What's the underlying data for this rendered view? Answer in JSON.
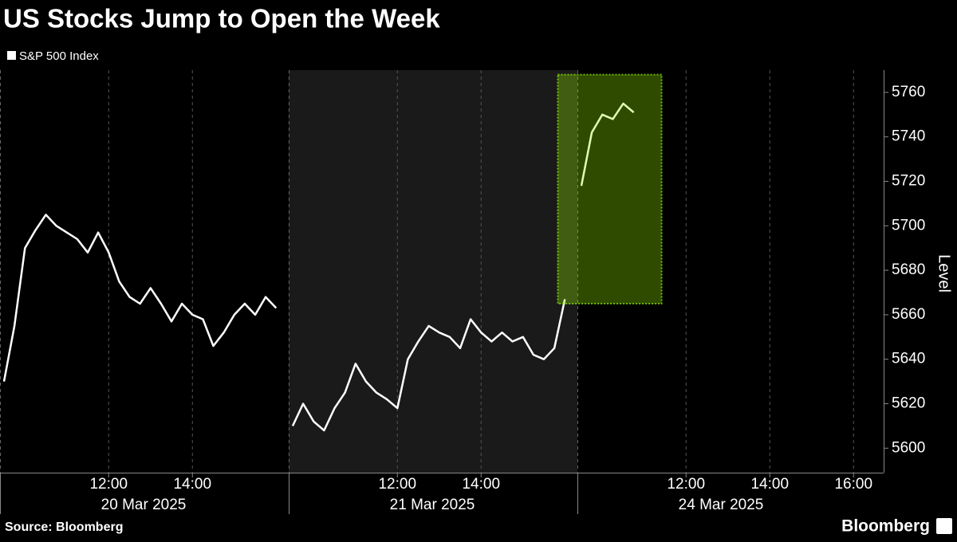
{
  "chart_data": {
    "type": "line",
    "title": "US Stocks Jump to Open the Week",
    "y_axis_label": "Level",
    "source": "Source: Bloomberg",
    "brand": "Bloomberg",
    "x": [
      "2025-03-20 09:30",
      "2025-03-20 09:45",
      "2025-03-20 10:00",
      "2025-03-20 10:15",
      "2025-03-20 10:30",
      "2025-03-20 10:45",
      "2025-03-20 11:00",
      "2025-03-20 11:15",
      "2025-03-20 11:30",
      "2025-03-20 11:45",
      "2025-03-20 12:00",
      "2025-03-20 12:15",
      "2025-03-20 12:30",
      "2025-03-20 12:45",
      "2025-03-20 13:00",
      "2025-03-20 13:15",
      "2025-03-20 13:30",
      "2025-03-20 13:45",
      "2025-03-20 14:00",
      "2025-03-20 14:15",
      "2025-03-20 14:30",
      "2025-03-20 14:45",
      "2025-03-20 15:00",
      "2025-03-20 15:15",
      "2025-03-20 15:30",
      "2025-03-20 15:45",
      "2025-03-20 16:00",
      "2025-03-21 09:30",
      "2025-03-21 09:45",
      "2025-03-21 10:00",
      "2025-03-21 10:15",
      "2025-03-21 10:30",
      "2025-03-21 10:45",
      "2025-03-21 11:00",
      "2025-03-21 11:15",
      "2025-03-21 11:30",
      "2025-03-21 11:45",
      "2025-03-21 12:00",
      "2025-03-21 12:15",
      "2025-03-21 12:30",
      "2025-03-21 12:45",
      "2025-03-21 13:00",
      "2025-03-21 13:15",
      "2025-03-21 13:30",
      "2025-03-21 13:45",
      "2025-03-21 14:00",
      "2025-03-21 14:15",
      "2025-03-21 14:30",
      "2025-03-21 14:45",
      "2025-03-21 15:00",
      "2025-03-21 15:15",
      "2025-03-21 15:30",
      "2025-03-21 15:45",
      "2025-03-21 16:00",
      "2025-03-24 09:30",
      "2025-03-24 09:45",
      "2025-03-24 10:00",
      "2025-03-24 10:15",
      "2025-03-24 10:30",
      "2025-03-24 10:45"
    ],
    "series": [
      {
        "name": "S&P 500 Index",
        "color": "#ffffff",
        "values": [
          5630,
          5655,
          5690,
          5698,
          5705,
          5700,
          5697,
          5694,
          5688,
          5697,
          5688,
          5675,
          5668,
          5665,
          5672,
          5665,
          5657,
          5665,
          5660,
          5658,
          5646,
          5652,
          5660,
          5665,
          5660,
          5668,
          5663,
          5610,
          5620,
          5612,
          5608,
          5618,
          5625,
          5638,
          5630,
          5625,
          5622,
          5618,
          5640,
          5648,
          5655,
          5652,
          5650,
          5645,
          5658,
          5652,
          5648,
          5652,
          5648,
          5650,
          5642,
          5640,
          5645,
          5667,
          5718,
          5742,
          5750,
          5748,
          5755,
          5751
        ]
      }
    ],
    "days": [
      {
        "value": "2025-03-20",
        "label": "20 Mar 2025"
      },
      {
        "value": "2025-03-21",
        "label": "21 Mar 2025"
      },
      {
        "value": "2025-03-24",
        "label": "24 Mar 2025"
      }
    ],
    "xticks": [
      {
        "value": "2025-03-20 12:00",
        "label": "12:00"
      },
      {
        "value": "2025-03-20 14:00",
        "label": "14:00"
      },
      {
        "value": "2025-03-21 12:00",
        "label": "12:00"
      },
      {
        "value": "2025-03-21 14:00",
        "label": "14:00"
      },
      {
        "value": "2025-03-24 12:00",
        "label": "12:00"
      },
      {
        "value": "2025-03-24 14:00",
        "label": "14:00"
      },
      {
        "value": "2025-03-24 16:00",
        "label": "16:00"
      }
    ],
    "ylim": [
      5589,
      5770
    ],
    "yticks": [
      5600,
      5620,
      5640,
      5660,
      5680,
      5700,
      5720,
      5740,
      5760
    ],
    "highlight": {
      "x": [
        "2025-03-21 15:50",
        "2025-03-24 11:25"
      ],
      "y": [
        5665,
        5768
      ],
      "color": "#99f700"
    },
    "grid": true
  }
}
